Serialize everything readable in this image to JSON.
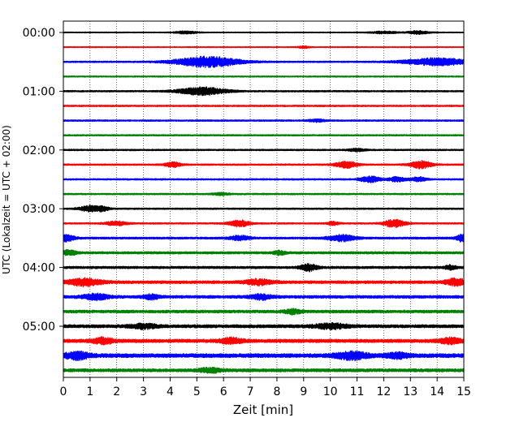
{
  "chart_data": {
    "type": "line",
    "title": "",
    "xlabel": "Zeit  [min]",
    "ylabel": "UTC (Lokalzeit = UTC + 02:00)",
    "xlim": [
      0,
      15
    ],
    "x_ticks": [
      "0",
      "1",
      "2",
      "3",
      "4",
      "5",
      "6",
      "7",
      "8",
      "9",
      "10",
      "11",
      "12",
      "13",
      "14",
      "15"
    ],
    "y_ticks": [
      {
        "label": "00:00",
        "row": 0
      },
      {
        "label": "01:00",
        "row": 4
      },
      {
        "label": "02:00",
        "row": 8
      },
      {
        "label": "03:00",
        "row": 12
      },
      {
        "label": "04:00",
        "row": 16
      },
      {
        "label": "05:00",
        "row": 20
      }
    ],
    "grid": "vertical-dotted",
    "trace_colors": [
      "#000000",
      "#ff0000",
      "#0000ff",
      "#008000"
    ],
    "row_minutes": 15,
    "rows": [
      {
        "start": "00:00",
        "amp": 0.2,
        "events": [
          {
            "t": 4.6,
            "a": 0.5,
            "w": 0.4
          },
          {
            "t": 12.0,
            "a": 0.45,
            "w": 0.5
          },
          {
            "t": 13.3,
            "a": 0.6,
            "w": 0.4
          }
        ]
      },
      {
        "start": "00:15",
        "amp": 0.2,
        "events": [
          {
            "t": 9.0,
            "a": 0.4,
            "w": 0.2
          }
        ]
      },
      {
        "start": "00:30",
        "amp": 0.3,
        "events": [
          {
            "t": 5.4,
            "a": 2.0,
            "w": 1.2
          },
          {
            "t": 14.0,
            "a": 1.4,
            "w": 1.2
          }
        ]
      },
      {
        "start": "00:45",
        "amp": 0.25,
        "events": []
      },
      {
        "start": "01:00",
        "amp": 0.3,
        "events": [
          {
            "t": 5.2,
            "a": 1.4,
            "w": 0.9
          }
        ]
      },
      {
        "start": "01:15",
        "amp": 0.3,
        "events": []
      },
      {
        "start": "01:30",
        "amp": 0.3,
        "events": [
          {
            "t": 9.5,
            "a": 0.5,
            "w": 0.3
          }
        ]
      },
      {
        "start": "01:45",
        "amp": 0.3,
        "events": []
      },
      {
        "start": "02:00",
        "amp": 0.3,
        "events": [
          {
            "t": 11.0,
            "a": 0.5,
            "w": 0.3
          }
        ]
      },
      {
        "start": "02:15",
        "amp": 0.3,
        "events": [
          {
            "t": 4.1,
            "a": 0.9,
            "w": 0.3
          },
          {
            "t": 10.6,
            "a": 1.2,
            "w": 0.4
          },
          {
            "t": 13.4,
            "a": 1.4,
            "w": 0.4
          }
        ]
      },
      {
        "start": "02:30",
        "amp": 0.3,
        "events": [
          {
            "t": 11.5,
            "a": 1.1,
            "w": 0.4
          },
          {
            "t": 12.5,
            "a": 0.9,
            "w": 0.3
          },
          {
            "t": 13.3,
            "a": 0.8,
            "w": 0.3
          }
        ]
      },
      {
        "start": "02:45",
        "amp": 0.3,
        "events": [
          {
            "t": 5.9,
            "a": 0.4,
            "w": 0.3
          }
        ]
      },
      {
        "start": "03:00",
        "amp": 0.3,
        "events": [
          {
            "t": 1.0,
            "a": 1.1,
            "w": 0.4
          },
          {
            "t": 1.5,
            "a": 0.7,
            "w": 0.2
          }
        ]
      },
      {
        "start": "03:15",
        "amp": 0.3,
        "events": [
          {
            "t": 2.0,
            "a": 0.8,
            "w": 0.4
          },
          {
            "t": 6.6,
            "a": 1.2,
            "w": 0.4
          },
          {
            "t": 10.1,
            "a": 0.7,
            "w": 0.2
          },
          {
            "t": 12.4,
            "a": 1.4,
            "w": 0.4
          }
        ]
      },
      {
        "start": "03:30",
        "amp": 0.4,
        "events": [
          {
            "t": 0.1,
            "a": 1.2,
            "w": 0.3
          },
          {
            "t": 6.6,
            "a": 0.8,
            "w": 0.4
          },
          {
            "t": 10.4,
            "a": 1.2,
            "w": 0.5
          },
          {
            "t": 14.9,
            "a": 1.2,
            "w": 0.2
          }
        ]
      },
      {
        "start": "03:45",
        "amp": 0.45,
        "events": [
          {
            "t": 0.2,
            "a": 0.9,
            "w": 0.3
          },
          {
            "t": 8.1,
            "a": 0.8,
            "w": 0.2
          }
        ]
      },
      {
        "start": "04:00",
        "amp": 0.45,
        "events": [
          {
            "t": 9.2,
            "a": 1.3,
            "w": 0.3
          },
          {
            "t": 14.5,
            "a": 0.8,
            "w": 0.2
          }
        ]
      },
      {
        "start": "04:15",
        "amp": 0.55,
        "events": [
          {
            "t": 0.8,
            "a": 1.3,
            "w": 0.6
          },
          {
            "t": 7.3,
            "a": 1.0,
            "w": 0.5
          },
          {
            "t": 14.7,
            "a": 1.2,
            "w": 0.4
          }
        ]
      },
      {
        "start": "04:30",
        "amp": 0.55,
        "events": [
          {
            "t": 1.2,
            "a": 1.0,
            "w": 0.5
          },
          {
            "t": 3.3,
            "a": 0.8,
            "w": 0.3
          },
          {
            "t": 7.4,
            "a": 0.9,
            "w": 0.4
          }
        ]
      },
      {
        "start": "04:45",
        "amp": 0.55,
        "events": [
          {
            "t": 8.6,
            "a": 0.8,
            "w": 0.3
          }
        ]
      },
      {
        "start": "05:00",
        "amp": 0.6,
        "events": [
          {
            "t": 3.0,
            "a": 0.8,
            "w": 0.5
          },
          {
            "t": 10.0,
            "a": 0.9,
            "w": 0.6
          }
        ]
      },
      {
        "start": "05:15",
        "amp": 0.65,
        "events": [
          {
            "t": 1.5,
            "a": 1.0,
            "w": 0.4
          },
          {
            "t": 6.3,
            "a": 1.0,
            "w": 0.4
          },
          {
            "t": 14.5,
            "a": 1.0,
            "w": 0.4
          }
        ]
      },
      {
        "start": "05:30",
        "amp": 0.75,
        "events": [
          {
            "t": 0.5,
            "a": 1.2,
            "w": 0.5
          },
          {
            "t": 10.8,
            "a": 1.3,
            "w": 0.6
          },
          {
            "t": 12.5,
            "a": 0.9,
            "w": 0.4
          }
        ]
      },
      {
        "start": "05:45",
        "amp": 0.6,
        "events": [
          {
            "t": 5.5,
            "a": 0.8,
            "w": 0.4
          }
        ]
      }
    ]
  }
}
